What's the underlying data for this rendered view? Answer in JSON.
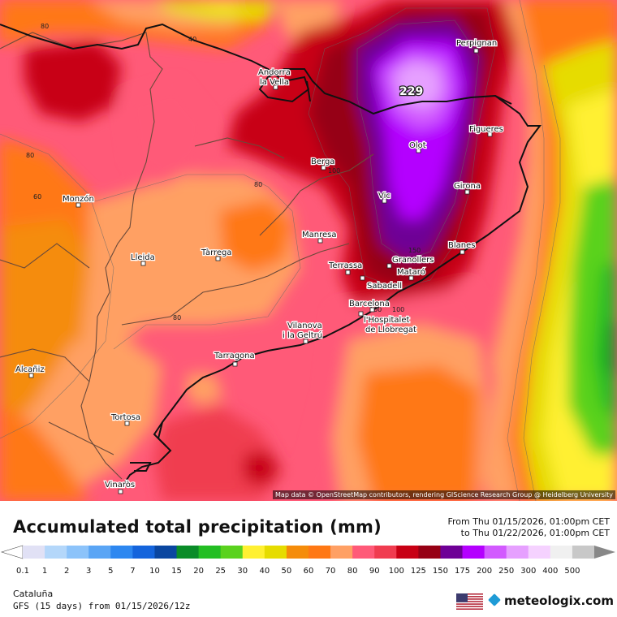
{
  "map": {
    "peak_value": "229",
    "cities": [
      {
        "name": "Perpignan"
      },
      {
        "name": "Andorra la Vella"
      },
      {
        "name": "Figueres"
      },
      {
        "name": "Olot"
      },
      {
        "name": "Berga"
      },
      {
        "name": "Girona"
      },
      {
        "name": "Monzón"
      },
      {
        "name": "Vic"
      },
      {
        "name": "Manresa"
      },
      {
        "name": "Blanes"
      },
      {
        "name": "Lleida"
      },
      {
        "name": "Tàrrega"
      },
      {
        "name": "Granollers"
      },
      {
        "name": "Terrassa"
      },
      {
        "name": "Mataró"
      },
      {
        "name": "Sabadell"
      },
      {
        "name": "Barcelona"
      },
      {
        "name": "l'Hospitalet de Llobregat"
      },
      {
        "name": "Vilanova i la Geltrú"
      },
      {
        "name": "Tarragona"
      },
      {
        "name": "Alcañiz"
      },
      {
        "name": "Tortosa"
      },
      {
        "name": "Vinaròs"
      }
    ],
    "contour_labels": [
      "80",
      "40",
      "80",
      "60",
      "80",
      "100",
      "80",
      "100",
      "150",
      "100"
    ],
    "attribution": "Map data © OpenStreetMap contributors, rendering GIScience Research Group @ Heidelberg University"
  },
  "legend": {
    "title": "Accumulated total precipitation (mm)",
    "date_from": "From Thu 01/15/2026, 01:00pm CET",
    "date_to": "to Thu 01/22/2026, 01:00pm CET",
    "scale_colors": [
      "#e1e1f5",
      "#b4d7fa",
      "#8cc3fa",
      "#5aa5f5",
      "#2d87f0",
      "#1464dc",
      "#0a46a0",
      "#0a8c28",
      "#23be23",
      "#5ad21e",
      "#fff032",
      "#e6dc00",
      "#f58c0a",
      "#ff7814",
      "#ffa064",
      "#ff5a78",
      "#f03c50",
      "#c80014",
      "#960014",
      "#6e0096",
      "#b400ff",
      "#d25aff",
      "#e6a0ff",
      "#f5d2ff",
      "#f0f0f0",
      "#c8c8c8"
    ],
    "scale_values": [
      "0.1",
      "1",
      "2",
      "3",
      "5",
      "7",
      "10",
      "15",
      "20",
      "25",
      "30",
      "40",
      "50",
      "60",
      "70",
      "80",
      "90",
      "100",
      "125",
      "150",
      "175",
      "200",
      "250",
      "300",
      "400",
      "500"
    ],
    "region": "Cataluña",
    "model_run": "GFS (15 days) from 01/15/2026/12z",
    "brand": "meteologix.com"
  }
}
